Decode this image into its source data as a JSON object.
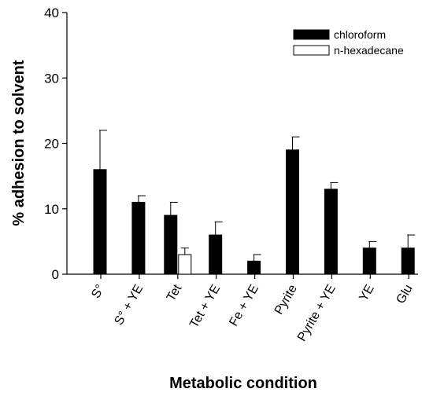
{
  "chart_data": {
    "type": "bar",
    "xlabel": "Metabolic condition",
    "ylabel": "% adhesion to solvent",
    "ylim": [
      0,
      40
    ],
    "yticks": [
      0,
      10,
      20,
      30,
      40
    ],
    "categories": [
      "S°",
      "S° + YE",
      "Tet",
      "Tet + YE",
      "Fe + YE",
      "Pyrite",
      "Pyrite + YE",
      "YE",
      "Glu"
    ],
    "series": [
      {
        "name": "chloroform",
        "color": "#000000",
        "values": [
          16,
          11,
          9,
          6,
          2,
          19,
          13,
          4,
          4
        ],
        "errors": [
          6,
          1,
          2,
          2,
          1,
          2,
          1,
          1,
          2
        ]
      },
      {
        "name": "n-hexadecane",
        "color": "#ffffff",
        "values": [
          null,
          null,
          3,
          null,
          null,
          null,
          null,
          null,
          null
        ],
        "errors": [
          null,
          null,
          1,
          null,
          null,
          null,
          null,
          null,
          null
        ]
      }
    ],
    "legend_position": "top-right",
    "grid": false
  }
}
